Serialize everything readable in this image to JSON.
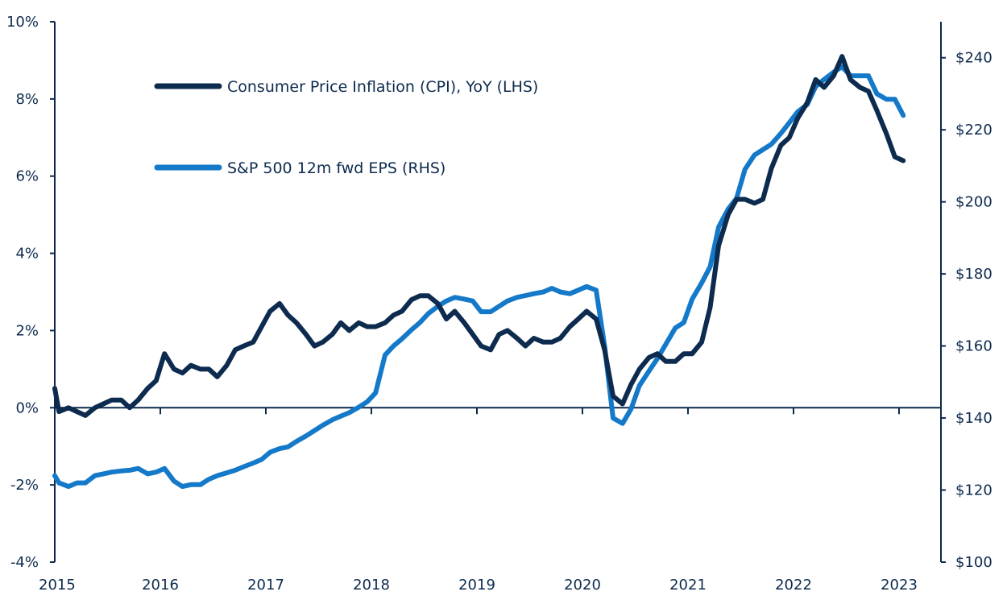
{
  "chart_data": {
    "type": "line",
    "title": "",
    "xlabel": "",
    "ylabel_left": "",
    "ylabel_right": "",
    "x_range": [
      2015.0,
      2023.08
    ],
    "x_ticks": [
      {
        "value": 2015,
        "label": "2015"
      },
      {
        "value": 2016,
        "label": "2016"
      },
      {
        "value": 2017,
        "label": "2017"
      },
      {
        "value": 2018,
        "label": "2018"
      },
      {
        "value": 2019,
        "label": "2019"
      },
      {
        "value": 2020,
        "label": "2020"
      },
      {
        "value": 2021,
        "label": "2021"
      },
      {
        "value": 2022,
        "label": "2022"
      },
      {
        "value": 2023,
        "label": "2023"
      }
    ],
    "ylim_left": [
      -4,
      10
    ],
    "y_ticks_left": [
      {
        "value": 10,
        "label": "10%"
      },
      {
        "value": 8,
        "label": "8%"
      },
      {
        "value": 6,
        "label": "6%"
      },
      {
        "value": 4,
        "label": "4%"
      },
      {
        "value": 2,
        "label": "2%"
      },
      {
        "value": 0,
        "label": "0%"
      },
      {
        "value": -2,
        "label": "-2%"
      },
      {
        "value": -4,
        "label": "-4%"
      }
    ],
    "ylim_right": [
      100,
      250
    ],
    "y_ticks_right": [
      {
        "value": 240,
        "label": "$240"
      },
      {
        "value": 220,
        "label": "$220"
      },
      {
        "value": 200,
        "label": "$200"
      },
      {
        "value": 180,
        "label": "$180"
      },
      {
        "value": 160,
        "label": "$160"
      },
      {
        "value": 140,
        "label": "$140"
      },
      {
        "value": 120,
        "label": "$120"
      },
      {
        "value": 100,
        "label": "$100"
      }
    ],
    "legend_position": "top-left",
    "series": [
      {
        "name": "Consumer Price Inflation (CPI), YoY (LHS)",
        "axis": "left",
        "color": "#0d2b4e",
        "points": [
          [
            2015.0,
            0.5
          ],
          [
            2015.04,
            -0.1
          ],
          [
            2015.13,
            0.0
          ],
          [
            2015.21,
            -0.1
          ],
          [
            2015.29,
            -0.2
          ],
          [
            2015.38,
            0.0
          ],
          [
            2015.46,
            0.1
          ],
          [
            2015.54,
            0.2
          ],
          [
            2015.63,
            0.2
          ],
          [
            2015.71,
            0.0
          ],
          [
            2015.79,
            0.2
          ],
          [
            2015.88,
            0.5
          ],
          [
            2015.96,
            0.7
          ],
          [
            2016.04,
            1.4
          ],
          [
            2016.13,
            1.0
          ],
          [
            2016.21,
            0.9
          ],
          [
            2016.29,
            1.1
          ],
          [
            2016.38,
            1.0
          ],
          [
            2016.46,
            1.0
          ],
          [
            2016.54,
            0.8
          ],
          [
            2016.63,
            1.1
          ],
          [
            2016.71,
            1.5
          ],
          [
            2016.79,
            1.6
          ],
          [
            2016.88,
            1.7
          ],
          [
            2016.96,
            2.1
          ],
          [
            2017.04,
            2.5
          ],
          [
            2017.13,
            2.7
          ],
          [
            2017.21,
            2.4
          ],
          [
            2017.29,
            2.2
          ],
          [
            2017.38,
            1.9
          ],
          [
            2017.46,
            1.6
          ],
          [
            2017.54,
            1.7
          ],
          [
            2017.63,
            1.9
          ],
          [
            2017.71,
            2.2
          ],
          [
            2017.79,
            2.0
          ],
          [
            2017.88,
            2.2
          ],
          [
            2017.96,
            2.1
          ],
          [
            2018.04,
            2.1
          ],
          [
            2018.13,
            2.2
          ],
          [
            2018.21,
            2.4
          ],
          [
            2018.29,
            2.5
          ],
          [
            2018.38,
            2.8
          ],
          [
            2018.46,
            2.9
          ],
          [
            2018.54,
            2.9
          ],
          [
            2018.63,
            2.7
          ],
          [
            2018.71,
            2.3
          ],
          [
            2018.79,
            2.5
          ],
          [
            2018.88,
            2.2
          ],
          [
            2018.96,
            1.9
          ],
          [
            2019.04,
            1.6
          ],
          [
            2019.13,
            1.5
          ],
          [
            2019.21,
            1.9
          ],
          [
            2019.29,
            2.0
          ],
          [
            2019.38,
            1.8
          ],
          [
            2019.46,
            1.6
          ],
          [
            2019.54,
            1.8
          ],
          [
            2019.63,
            1.7
          ],
          [
            2019.71,
            1.7
          ],
          [
            2019.79,
            1.8
          ],
          [
            2019.88,
            2.1
          ],
          [
            2019.96,
            2.3
          ],
          [
            2020.04,
            2.5
          ],
          [
            2020.13,
            2.3
          ],
          [
            2020.21,
            1.5
          ],
          [
            2020.29,
            0.3
          ],
          [
            2020.38,
            0.1
          ],
          [
            2020.46,
            0.6
          ],
          [
            2020.54,
            1.0
          ],
          [
            2020.63,
            1.3
          ],
          [
            2020.71,
            1.4
          ],
          [
            2020.79,
            1.2
          ],
          [
            2020.88,
            1.2
          ],
          [
            2020.96,
            1.4
          ],
          [
            2021.04,
            1.4
          ],
          [
            2021.13,
            1.7
          ],
          [
            2021.21,
            2.6
          ],
          [
            2021.29,
            4.2
          ],
          [
            2021.38,
            5.0
          ],
          [
            2021.46,
            5.4
          ],
          [
            2021.54,
            5.4
          ],
          [
            2021.63,
            5.3
          ],
          [
            2021.71,
            5.4
          ],
          [
            2021.79,
            6.2
          ],
          [
            2021.88,
            6.8
          ],
          [
            2021.96,
            7.0
          ],
          [
            2022.04,
            7.5
          ],
          [
            2022.13,
            7.9
          ],
          [
            2022.21,
            8.5
          ],
          [
            2022.29,
            8.3
          ],
          [
            2022.38,
            8.6
          ],
          [
            2022.46,
            9.1
          ],
          [
            2022.54,
            8.5
          ],
          [
            2022.63,
            8.3
          ],
          [
            2022.71,
            8.2
          ],
          [
            2022.79,
            7.7
          ],
          [
            2022.88,
            7.1
          ],
          [
            2022.96,
            6.5
          ],
          [
            2023.04,
            6.4
          ]
        ]
      },
      {
        "name": "S&P 500 12m fwd EPS (RHS)",
        "axis": "right",
        "color": "#1479c9",
        "points": [
          [
            2015.0,
            124
          ],
          [
            2015.04,
            122
          ],
          [
            2015.13,
            121
          ],
          [
            2015.21,
            122
          ],
          [
            2015.29,
            122
          ],
          [
            2015.38,
            124
          ],
          [
            2015.46,
            124.5
          ],
          [
            2015.54,
            125
          ],
          [
            2015.63,
            125.3
          ],
          [
            2015.71,
            125.5
          ],
          [
            2015.79,
            126
          ],
          [
            2015.88,
            124.5
          ],
          [
            2015.96,
            125
          ],
          [
            2016.04,
            126
          ],
          [
            2016.13,
            122.5
          ],
          [
            2016.21,
            121
          ],
          [
            2016.29,
            121.5
          ],
          [
            2016.38,
            121.5
          ],
          [
            2016.46,
            123
          ],
          [
            2016.54,
            124
          ],
          [
            2016.63,
            124.8
          ],
          [
            2016.71,
            125.5
          ],
          [
            2016.79,
            126.5
          ],
          [
            2016.88,
            127.5
          ],
          [
            2016.96,
            128.5
          ],
          [
            2017.04,
            130.5
          ],
          [
            2017.13,
            131.5
          ],
          [
            2017.21,
            132
          ],
          [
            2017.29,
            133.5
          ],
          [
            2017.38,
            135
          ],
          [
            2017.46,
            136.5
          ],
          [
            2017.54,
            138
          ],
          [
            2017.63,
            139.5
          ],
          [
            2017.71,
            140.5
          ],
          [
            2017.79,
            141.5
          ],
          [
            2017.88,
            143
          ],
          [
            2017.96,
            144.5
          ],
          [
            2018.04,
            147
          ],
          [
            2018.13,
            157.5
          ],
          [
            2018.21,
            160
          ],
          [
            2018.29,
            162
          ],
          [
            2018.38,
            164.5
          ],
          [
            2018.46,
            166.5
          ],
          [
            2018.54,
            169
          ],
          [
            2018.63,
            171
          ],
          [
            2018.71,
            172.5
          ],
          [
            2018.79,
            173.5
          ],
          [
            2018.88,
            173
          ],
          [
            2018.96,
            172.5
          ],
          [
            2019.04,
            169.5
          ],
          [
            2019.13,
            169.5
          ],
          [
            2019.21,
            171
          ],
          [
            2019.29,
            172.5
          ],
          [
            2019.38,
            173.5
          ],
          [
            2019.46,
            174
          ],
          [
            2019.54,
            174.5
          ],
          [
            2019.63,
            175
          ],
          [
            2019.71,
            176
          ],
          [
            2019.79,
            175
          ],
          [
            2019.88,
            174.5
          ],
          [
            2019.96,
            175.5
          ],
          [
            2020.04,
            176.5
          ],
          [
            2020.13,
            175.5
          ],
          [
            2020.21,
            160
          ],
          [
            2020.29,
            140
          ],
          [
            2020.38,
            138.5
          ],
          [
            2020.46,
            142.5
          ],
          [
            2020.54,
            149
          ],
          [
            2020.63,
            153
          ],
          [
            2020.71,
            156.5
          ],
          [
            2020.79,
            160.5
          ],
          [
            2020.88,
            165
          ],
          [
            2020.96,
            166.5
          ],
          [
            2021.04,
            173
          ],
          [
            2021.13,
            177.5
          ],
          [
            2021.21,
            182
          ],
          [
            2021.29,
            193
          ],
          [
            2021.38,
            198
          ],
          [
            2021.46,
            201
          ],
          [
            2021.54,
            209
          ],
          [
            2021.63,
            213
          ],
          [
            2021.71,
            214.5
          ],
          [
            2021.79,
            216
          ],
          [
            2021.88,
            219
          ],
          [
            2021.96,
            222
          ],
          [
            2022.04,
            225
          ],
          [
            2022.13,
            227
          ],
          [
            2022.21,
            232
          ],
          [
            2022.29,
            234
          ],
          [
            2022.38,
            236
          ],
          [
            2022.46,
            237.5
          ],
          [
            2022.54,
            235
          ],
          [
            2022.63,
            235
          ],
          [
            2022.71,
            235
          ],
          [
            2022.79,
            230
          ],
          [
            2022.88,
            228.5
          ],
          [
            2022.96,
            228.5
          ],
          [
            2023.04,
            224
          ]
        ]
      }
    ]
  }
}
